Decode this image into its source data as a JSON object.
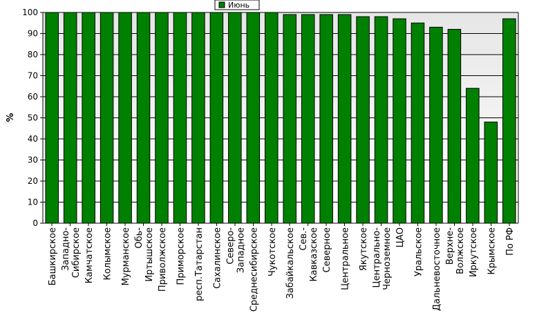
{
  "chart_data": {
    "type": "bar",
    "ylabel": "%",
    "ylim": [
      0,
      100
    ],
    "yticks": [
      0,
      10,
      20,
      30,
      40,
      50,
      60,
      70,
      80,
      90,
      100
    ],
    "grid": true,
    "legend_position": "top-center",
    "bar_color": "#008000",
    "categories": [
      [
        "Башкирское"
      ],
      [
        "Западно-",
        "Сибирское"
      ],
      [
        "Камчатское"
      ],
      [
        "Колымское"
      ],
      [
        "Мурманское"
      ],
      [
        "Обь-",
        "Иртышское"
      ],
      [
        "Приволжское"
      ],
      [
        "Приморское"
      ],
      [
        "респ.Татарстан"
      ],
      [
        "Сахалинское"
      ],
      [
        "Северо-",
        "Западное"
      ],
      [
        "Среднесибирское"
      ],
      [
        "Чукотское"
      ],
      [
        "Забайкальское"
      ],
      [
        "Сев.-",
        "Кавказское"
      ],
      [
        "Северное"
      ],
      [
        "Центральное"
      ],
      [
        "Якутское"
      ],
      [
        "Центрально-",
        "Черноземное"
      ],
      [
        "ЦАО"
      ],
      [
        "Уральское"
      ],
      [
        "Дальневосточное"
      ],
      [
        "Верхне-",
        "Волжское"
      ],
      [
        "Иркутское"
      ],
      [
        "Крымское"
      ],
      [
        "По РФ"
      ]
    ],
    "series": [
      {
        "name": "Июнь",
        "values": [
          100,
          100,
          100,
          100,
          100,
          100,
          100,
          100,
          100,
          100,
          100,
          100,
          100,
          99,
          99,
          99,
          99,
          98,
          98,
          97,
          95,
          93,
          92,
          64,
          48,
          97
        ]
      }
    ]
  }
}
